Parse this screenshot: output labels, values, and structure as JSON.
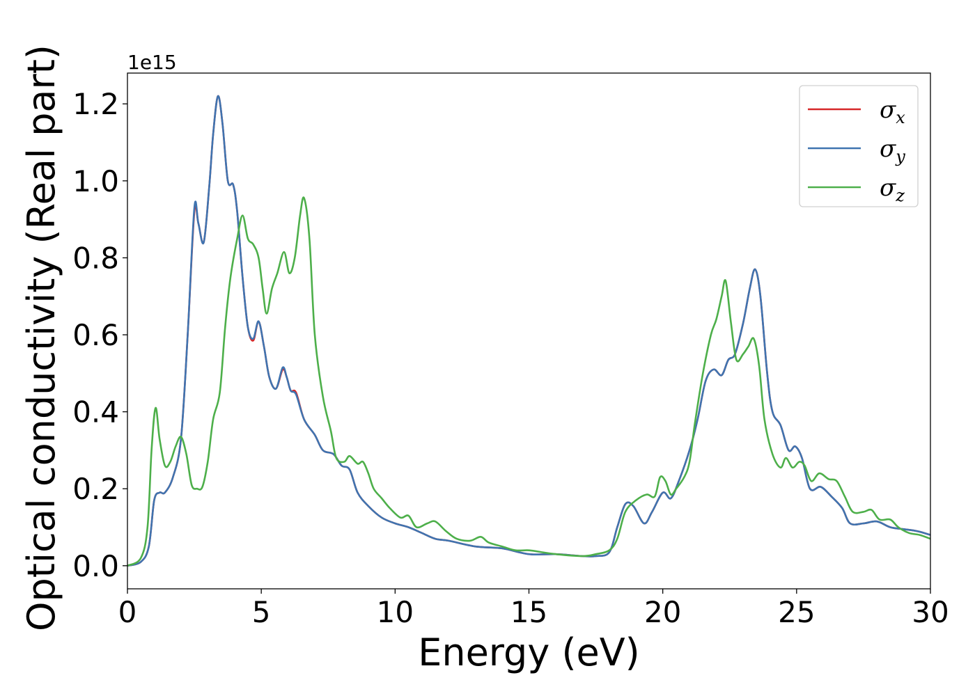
{
  "chart_data": {
    "type": "line",
    "xlabel": "Energy (eV)",
    "ylabel": "Optical conductivity (Real part)",
    "y_offset_label": "1e15",
    "xlim": [
      0,
      30
    ],
    "ylim": [
      -0.06,
      1.28
    ],
    "x_ticks": [
      0,
      5,
      10,
      15,
      20,
      25,
      30
    ],
    "x_tick_labels": [
      "0",
      "5",
      "10",
      "15",
      "20",
      "25",
      "30"
    ],
    "y_ticks": [
      0.0,
      0.2,
      0.4,
      0.6,
      0.8,
      1.0,
      1.2
    ],
    "y_tick_labels": [
      "0.0",
      "0.2",
      "0.4",
      "0.6",
      "0.8",
      "1.0",
      "1.2"
    ],
    "grid": false,
    "legend_position": "top-right",
    "series": [
      {
        "name": "σx",
        "symbol": "σ",
        "subscript": "x",
        "color": "#d62728",
        "points": [
          [
            0,
            0
          ],
          [
            0.5,
            0.01
          ],
          [
            0.8,
            0.05
          ],
          [
            1.0,
            0.17
          ],
          [
            1.2,
            0.19
          ],
          [
            1.4,
            0.19
          ],
          [
            1.7,
            0.23
          ],
          [
            2.0,
            0.33
          ],
          [
            2.25,
            0.6
          ],
          [
            2.5,
            0.92
          ],
          [
            2.65,
            0.89
          ],
          [
            2.85,
            0.84
          ],
          [
            3.05,
            0.98
          ],
          [
            3.2,
            1.12
          ],
          [
            3.38,
            1.22
          ],
          [
            3.55,
            1.15
          ],
          [
            3.75,
            1.0
          ],
          [
            3.95,
            0.99
          ],
          [
            4.1,
            0.92
          ],
          [
            4.3,
            0.75
          ],
          [
            4.5,
            0.62
          ],
          [
            4.7,
            0.585
          ],
          [
            4.9,
            0.635
          ],
          [
            5.1,
            0.57
          ],
          [
            5.3,
            0.49
          ],
          [
            5.55,
            0.46
          ],
          [
            5.8,
            0.51
          ],
          [
            5.95,
            0.49
          ],
          [
            6.1,
            0.455
          ],
          [
            6.3,
            0.45
          ],
          [
            6.6,
            0.38
          ],
          [
            7.0,
            0.34
          ],
          [
            7.3,
            0.3
          ],
          [
            7.7,
            0.29
          ],
          [
            8.0,
            0.26
          ],
          [
            8.3,
            0.25
          ],
          [
            8.6,
            0.19
          ],
          [
            9.0,
            0.155
          ],
          [
            9.5,
            0.125
          ],
          [
            10.0,
            0.11
          ],
          [
            10.5,
            0.1
          ],
          [
            11.0,
            0.085
          ],
          [
            11.5,
            0.07
          ],
          [
            12.0,
            0.065
          ],
          [
            13.0,
            0.05
          ],
          [
            14.0,
            0.045
          ],
          [
            15.0,
            0.03
          ],
          [
            16.0,
            0.03
          ],
          [
            17.0,
            0.025
          ],
          [
            17.5,
            0.025
          ],
          [
            18.0,
            0.035
          ],
          [
            18.3,
            0.1
          ],
          [
            18.6,
            0.16
          ],
          [
            18.9,
            0.155
          ],
          [
            19.3,
            0.11
          ],
          [
            19.6,
            0.14
          ],
          [
            20.0,
            0.19
          ],
          [
            20.3,
            0.175
          ],
          [
            20.6,
            0.22
          ],
          [
            21.0,
            0.3
          ],
          [
            21.3,
            0.38
          ],
          [
            21.6,
            0.48
          ],
          [
            21.9,
            0.51
          ],
          [
            22.2,
            0.495
          ],
          [
            22.45,
            0.535
          ],
          [
            22.7,
            0.55
          ],
          [
            23.0,
            0.63
          ],
          [
            23.25,
            0.72
          ],
          [
            23.45,
            0.77
          ],
          [
            23.65,
            0.7
          ],
          [
            23.9,
            0.5
          ],
          [
            24.1,
            0.4
          ],
          [
            24.4,
            0.365
          ],
          [
            24.7,
            0.3
          ],
          [
            24.95,
            0.31
          ],
          [
            25.2,
            0.28
          ],
          [
            25.5,
            0.2
          ],
          [
            25.9,
            0.205
          ],
          [
            26.3,
            0.18
          ],
          [
            26.7,
            0.15
          ],
          [
            27.0,
            0.11
          ],
          [
            27.5,
            0.11
          ],
          [
            28.0,
            0.115
          ],
          [
            28.5,
            0.1
          ],
          [
            29.0,
            0.095
          ],
          [
            29.5,
            0.09
          ],
          [
            30.0,
            0.08
          ]
        ]
      },
      {
        "name": "σy",
        "symbol": "σ",
        "subscript": "y",
        "color": "#3f74b0",
        "points": [
          [
            0,
            0
          ],
          [
            0.5,
            0.01
          ],
          [
            0.8,
            0.05
          ],
          [
            1.0,
            0.17
          ],
          [
            1.2,
            0.19
          ],
          [
            1.4,
            0.19
          ],
          [
            1.7,
            0.23
          ],
          [
            2.0,
            0.33
          ],
          [
            2.25,
            0.6
          ],
          [
            2.5,
            0.93
          ],
          [
            2.65,
            0.89
          ],
          [
            2.85,
            0.84
          ],
          [
            3.05,
            0.98
          ],
          [
            3.2,
            1.12
          ],
          [
            3.38,
            1.22
          ],
          [
            3.55,
            1.15
          ],
          [
            3.75,
            1.0
          ],
          [
            3.95,
            0.99
          ],
          [
            4.1,
            0.92
          ],
          [
            4.3,
            0.75
          ],
          [
            4.5,
            0.62
          ],
          [
            4.7,
            0.59
          ],
          [
            4.9,
            0.635
          ],
          [
            5.1,
            0.57
          ],
          [
            5.3,
            0.49
          ],
          [
            5.55,
            0.46
          ],
          [
            5.8,
            0.515
          ],
          [
            5.95,
            0.49
          ],
          [
            6.1,
            0.455
          ],
          [
            6.3,
            0.445
          ],
          [
            6.6,
            0.38
          ],
          [
            7.0,
            0.34
          ],
          [
            7.3,
            0.3
          ],
          [
            7.7,
            0.29
          ],
          [
            8.0,
            0.26
          ],
          [
            8.3,
            0.25
          ],
          [
            8.6,
            0.19
          ],
          [
            9.0,
            0.155
          ],
          [
            9.5,
            0.125
          ],
          [
            10.0,
            0.11
          ],
          [
            10.5,
            0.1
          ],
          [
            11.0,
            0.085
          ],
          [
            11.5,
            0.07
          ],
          [
            12.0,
            0.065
          ],
          [
            13.0,
            0.05
          ],
          [
            14.0,
            0.045
          ],
          [
            15.0,
            0.03
          ],
          [
            16.0,
            0.03
          ],
          [
            17.0,
            0.025
          ],
          [
            17.5,
            0.025
          ],
          [
            18.0,
            0.035
          ],
          [
            18.3,
            0.1
          ],
          [
            18.6,
            0.16
          ],
          [
            18.9,
            0.155
          ],
          [
            19.3,
            0.11
          ],
          [
            19.6,
            0.14
          ],
          [
            20.0,
            0.19
          ],
          [
            20.3,
            0.175
          ],
          [
            20.6,
            0.22
          ],
          [
            21.0,
            0.3
          ],
          [
            21.3,
            0.38
          ],
          [
            21.6,
            0.48
          ],
          [
            21.9,
            0.51
          ],
          [
            22.2,
            0.495
          ],
          [
            22.45,
            0.535
          ],
          [
            22.7,
            0.55
          ],
          [
            23.0,
            0.63
          ],
          [
            23.25,
            0.72
          ],
          [
            23.45,
            0.77
          ],
          [
            23.65,
            0.7
          ],
          [
            23.9,
            0.5
          ],
          [
            24.1,
            0.4
          ],
          [
            24.4,
            0.365
          ],
          [
            24.7,
            0.3
          ],
          [
            24.95,
            0.31
          ],
          [
            25.2,
            0.28
          ],
          [
            25.5,
            0.2
          ],
          [
            25.9,
            0.205
          ],
          [
            26.3,
            0.18
          ],
          [
            26.7,
            0.15
          ],
          [
            27.0,
            0.11
          ],
          [
            27.5,
            0.11
          ],
          [
            28.0,
            0.115
          ],
          [
            28.5,
            0.1
          ],
          [
            29.0,
            0.095
          ],
          [
            29.5,
            0.09
          ],
          [
            30.0,
            0.08
          ]
        ]
      },
      {
        "name": "σz",
        "symbol": "σ",
        "subscript": "z",
        "color": "#4daf4a",
        "points": [
          [
            0,
            0
          ],
          [
            0.5,
            0.02
          ],
          [
            0.75,
            0.1
          ],
          [
            0.9,
            0.3
          ],
          [
            1.05,
            0.41
          ],
          [
            1.2,
            0.33
          ],
          [
            1.4,
            0.26
          ],
          [
            1.6,
            0.27
          ],
          [
            1.8,
            0.31
          ],
          [
            2.0,
            0.335
          ],
          [
            2.2,
            0.29
          ],
          [
            2.4,
            0.21
          ],
          [
            2.6,
            0.2
          ],
          [
            2.8,
            0.205
          ],
          [
            3.0,
            0.27
          ],
          [
            3.2,
            0.38
          ],
          [
            3.45,
            0.45
          ],
          [
            3.65,
            0.62
          ],
          [
            3.85,
            0.75
          ],
          [
            4.1,
            0.85
          ],
          [
            4.3,
            0.91
          ],
          [
            4.5,
            0.85
          ],
          [
            4.7,
            0.835
          ],
          [
            4.9,
            0.8
          ],
          [
            5.05,
            0.72
          ],
          [
            5.2,
            0.655
          ],
          [
            5.4,
            0.72
          ],
          [
            5.6,
            0.76
          ],
          [
            5.85,
            0.815
          ],
          [
            6.05,
            0.76
          ],
          [
            6.25,
            0.8
          ],
          [
            6.45,
            0.91
          ],
          [
            6.6,
            0.955
          ],
          [
            6.8,
            0.85
          ],
          [
            7.0,
            0.6
          ],
          [
            7.3,
            0.44
          ],
          [
            7.6,
            0.35
          ],
          [
            7.8,
            0.28
          ],
          [
            8.1,
            0.27
          ],
          [
            8.3,
            0.285
          ],
          [
            8.6,
            0.265
          ],
          [
            8.8,
            0.27
          ],
          [
            9.0,
            0.24
          ],
          [
            9.2,
            0.2
          ],
          [
            9.5,
            0.175
          ],
          [
            9.8,
            0.15
          ],
          [
            10.2,
            0.125
          ],
          [
            10.5,
            0.13
          ],
          [
            10.8,
            0.1
          ],
          [
            11.2,
            0.11
          ],
          [
            11.5,
            0.115
          ],
          [
            11.9,
            0.09
          ],
          [
            12.3,
            0.07
          ],
          [
            12.8,
            0.065
          ],
          [
            13.2,
            0.075
          ],
          [
            13.5,
            0.06
          ],
          [
            14.0,
            0.05
          ],
          [
            14.5,
            0.04
          ],
          [
            15.0,
            0.04
          ],
          [
            15.5,
            0.035
          ],
          [
            16.0,
            0.03
          ],
          [
            17.0,
            0.025
          ],
          [
            17.5,
            0.03
          ],
          [
            18.0,
            0.04
          ],
          [
            18.3,
            0.07
          ],
          [
            18.6,
            0.14
          ],
          [
            19.0,
            0.17
          ],
          [
            19.4,
            0.185
          ],
          [
            19.7,
            0.18
          ],
          [
            19.9,
            0.23
          ],
          [
            20.1,
            0.22
          ],
          [
            20.3,
            0.185
          ],
          [
            20.5,
            0.2
          ],
          [
            20.8,
            0.23
          ],
          [
            21.0,
            0.27
          ],
          [
            21.2,
            0.37
          ],
          [
            21.5,
            0.5
          ],
          [
            21.8,
            0.6
          ],
          [
            22.0,
            0.64
          ],
          [
            22.2,
            0.7
          ],
          [
            22.35,
            0.74
          ],
          [
            22.55,
            0.63
          ],
          [
            22.75,
            0.535
          ],
          [
            23.0,
            0.55
          ],
          [
            23.2,
            0.57
          ],
          [
            23.4,
            0.59
          ],
          [
            23.6,
            0.52
          ],
          [
            23.8,
            0.38
          ],
          [
            24.1,
            0.29
          ],
          [
            24.4,
            0.255
          ],
          [
            24.6,
            0.28
          ],
          [
            24.85,
            0.255
          ],
          [
            25.1,
            0.27
          ],
          [
            25.3,
            0.26
          ],
          [
            25.55,
            0.22
          ],
          [
            25.85,
            0.24
          ],
          [
            26.2,
            0.225
          ],
          [
            26.5,
            0.22
          ],
          [
            26.8,
            0.18
          ],
          [
            27.1,
            0.14
          ],
          [
            27.5,
            0.14
          ],
          [
            27.8,
            0.145
          ],
          [
            28.1,
            0.12
          ],
          [
            28.5,
            0.12
          ],
          [
            28.8,
            0.1
          ],
          [
            29.2,
            0.085
          ],
          [
            29.6,
            0.08
          ],
          [
            30.0,
            0.07
          ]
        ]
      }
    ]
  }
}
